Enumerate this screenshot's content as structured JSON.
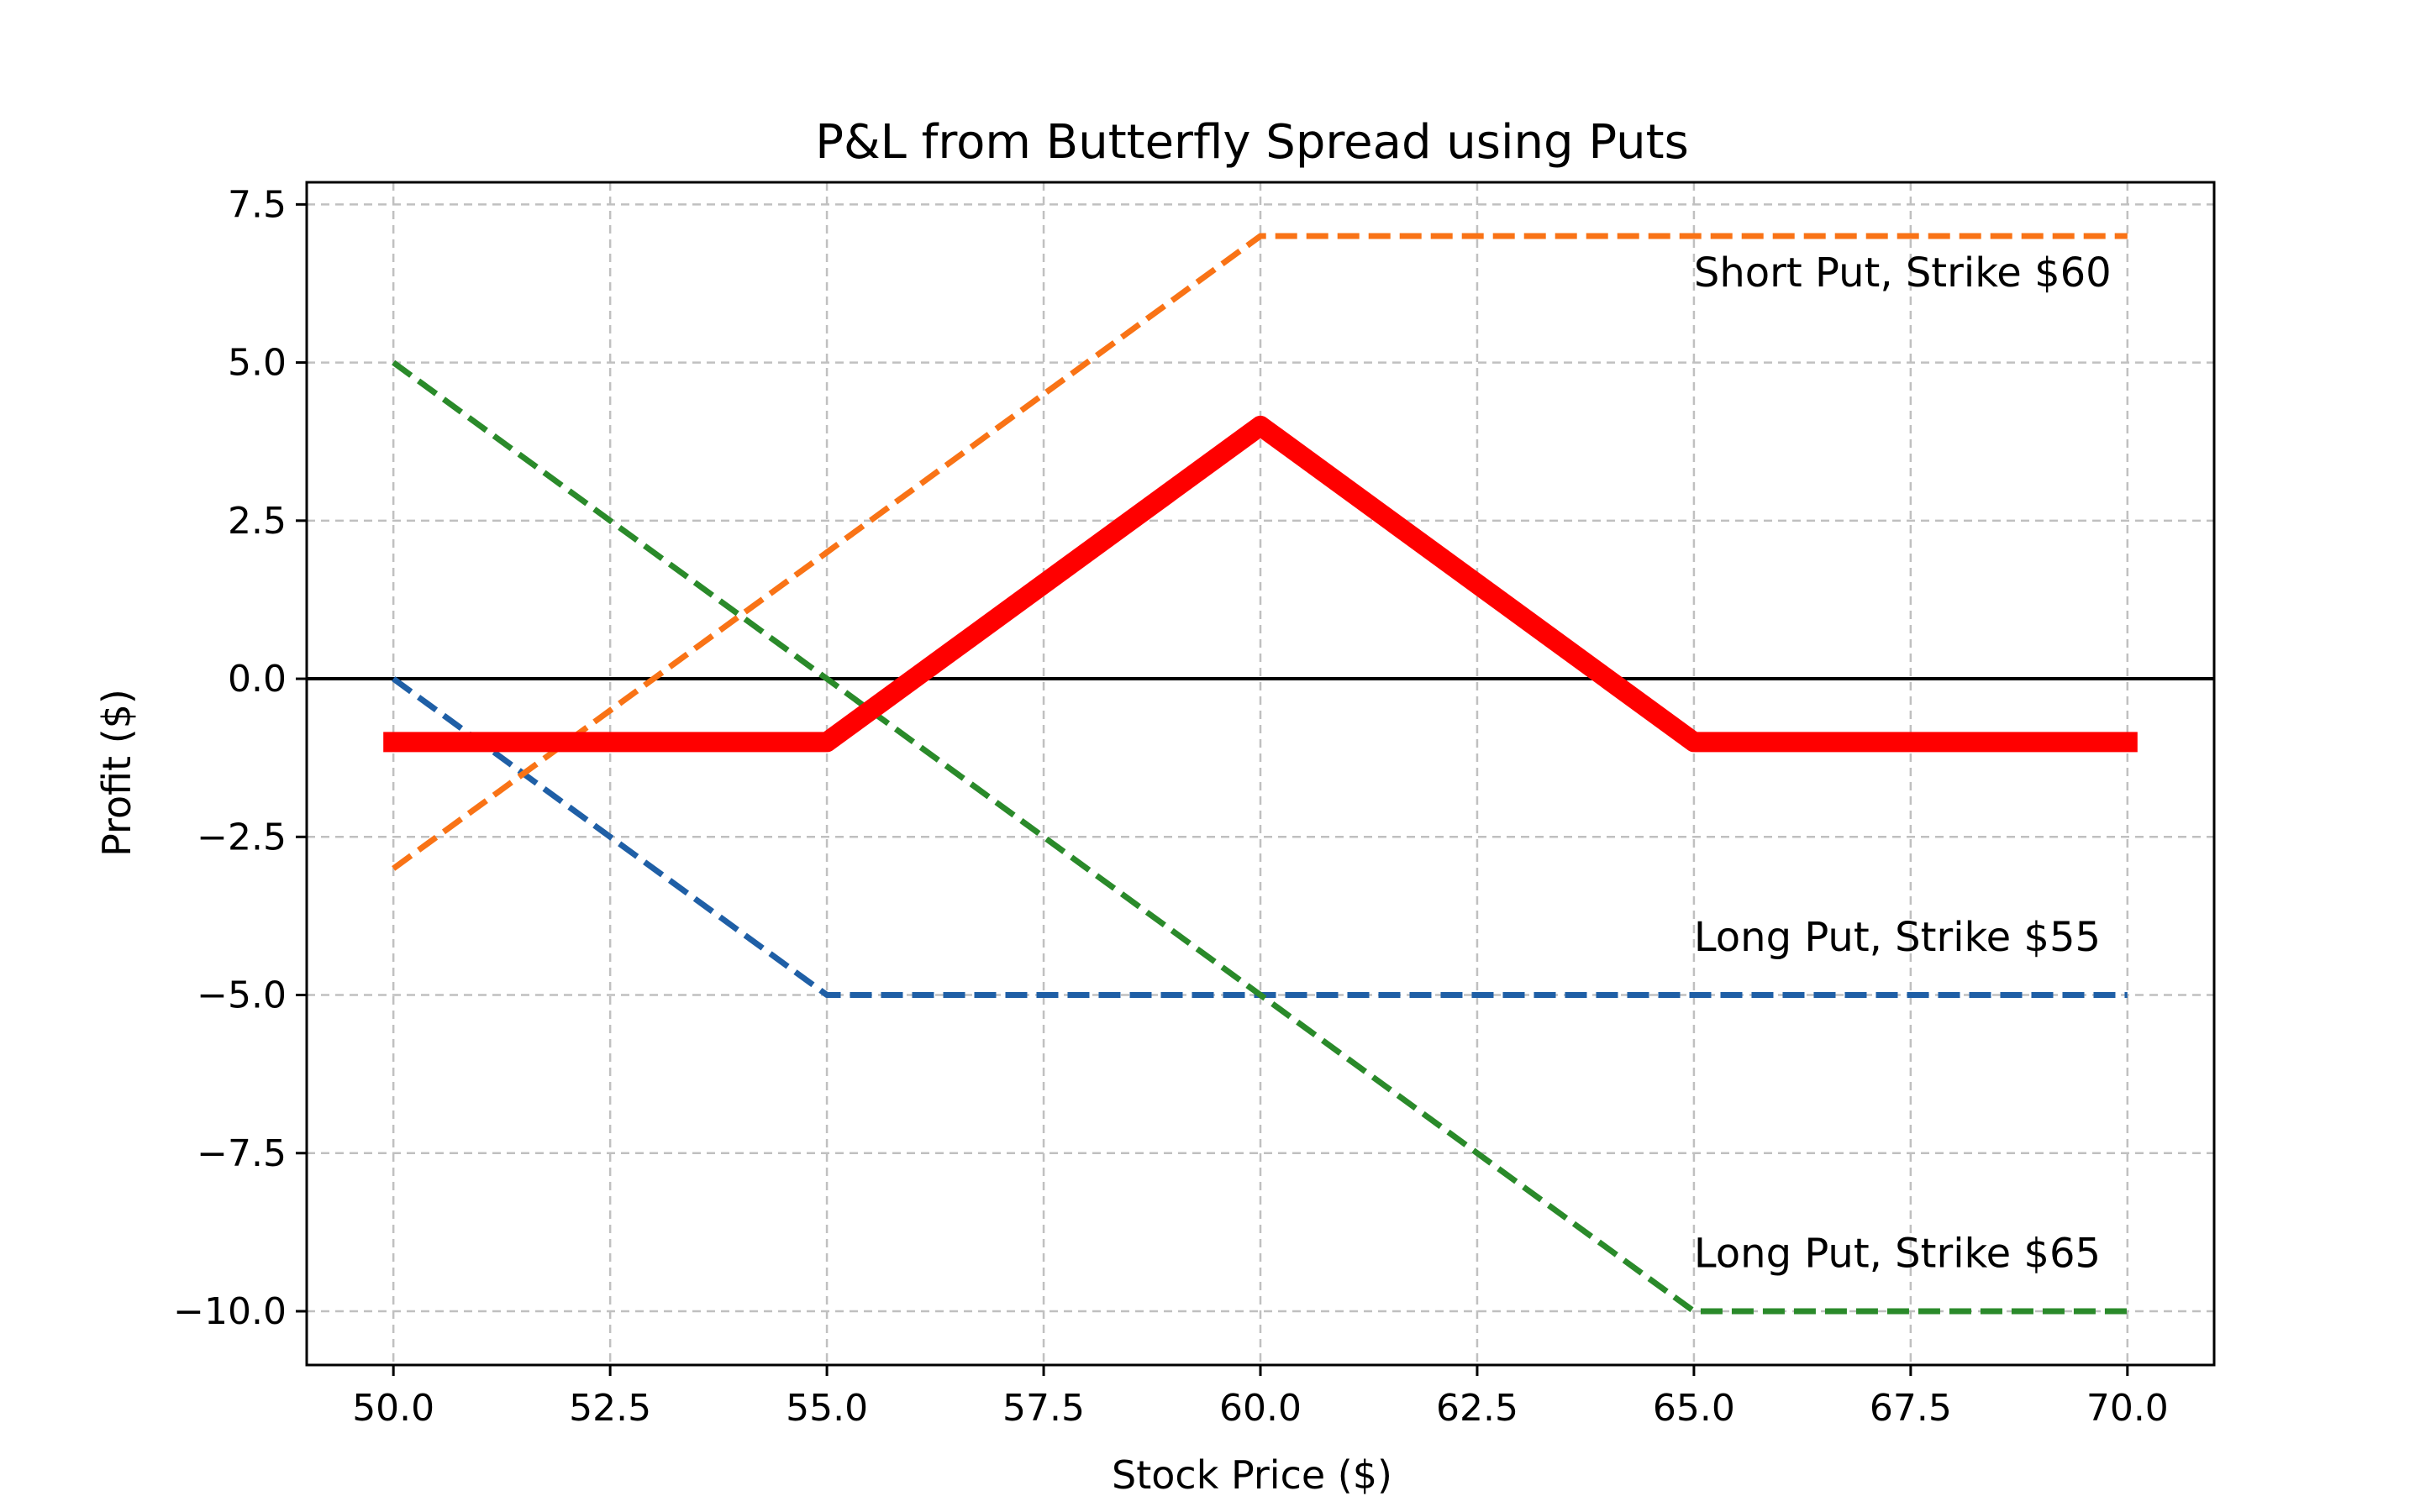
{
  "chart_data": {
    "type": "line",
    "title": "P&L from Butterfly Spread using Puts",
    "xlabel": "Stock Price ($)",
    "ylabel": "Profit ($)",
    "xlim": [
      49,
      71
    ],
    "ylim": [
      -10.85,
      7.85
    ],
    "xticks": [
      50.0,
      52.5,
      55.0,
      57.5,
      60.0,
      62.5,
      65.0,
      67.5,
      70.0
    ],
    "xtick_labels": [
      "50.0",
      "52.5",
      "55.0",
      "57.5",
      "60.0",
      "62.5",
      "65.0",
      "67.5",
      "70.0"
    ],
    "yticks": [
      7.5,
      5.0,
      2.5,
      0.0,
      -2.5,
      -5.0,
      -7.5,
      -10.0
    ],
    "ytick_labels": [
      "7.5",
      "5.0",
      "2.5",
      "0.0",
      "−2.5",
      "−5.0",
      "−7.5",
      "−10.0"
    ],
    "grid": true,
    "zero_line": 0.0,
    "colors": {
      "long_put_55": "#1f5fa6",
      "short_put_60": "#f97316",
      "long_put_65": "#2a8a2a",
      "spread": "#ff0000",
      "zero_line": "#000000",
      "grid": "#c0c0c0"
    },
    "series": [
      {
        "key": "long_put_55",
        "style": "dashed",
        "x": [
          50,
          55,
          60,
          65,
          70
        ],
        "y": [
          0,
          -5,
          -5,
          -5,
          -5
        ]
      },
      {
        "key": "short_put_60",
        "style": "dashed",
        "x": [
          50,
          55,
          60,
          65,
          70
        ],
        "y": [
          -3,
          2,
          7,
          7,
          7
        ]
      },
      {
        "key": "long_put_65",
        "style": "dashed",
        "x": [
          50,
          55,
          60,
          65,
          70
        ],
        "y": [
          5,
          0,
          -5,
          -10,
          -10
        ]
      },
      {
        "key": "spread",
        "style": "solid-thick",
        "x": [
          50,
          55,
          60,
          65,
          70
        ],
        "y": [
          -1,
          -1,
          4,
          -1,
          -1
        ]
      }
    ],
    "annotations": [
      {
        "text": "Short Put, Strike $60",
        "x": 65,
        "y": 6.2
      },
      {
        "text": "Long Put, Strike $55",
        "x": 65,
        "y": -4.3
      },
      {
        "text": "Long Put, Strike $65",
        "x": 65,
        "y": -9.3
      }
    ]
  }
}
